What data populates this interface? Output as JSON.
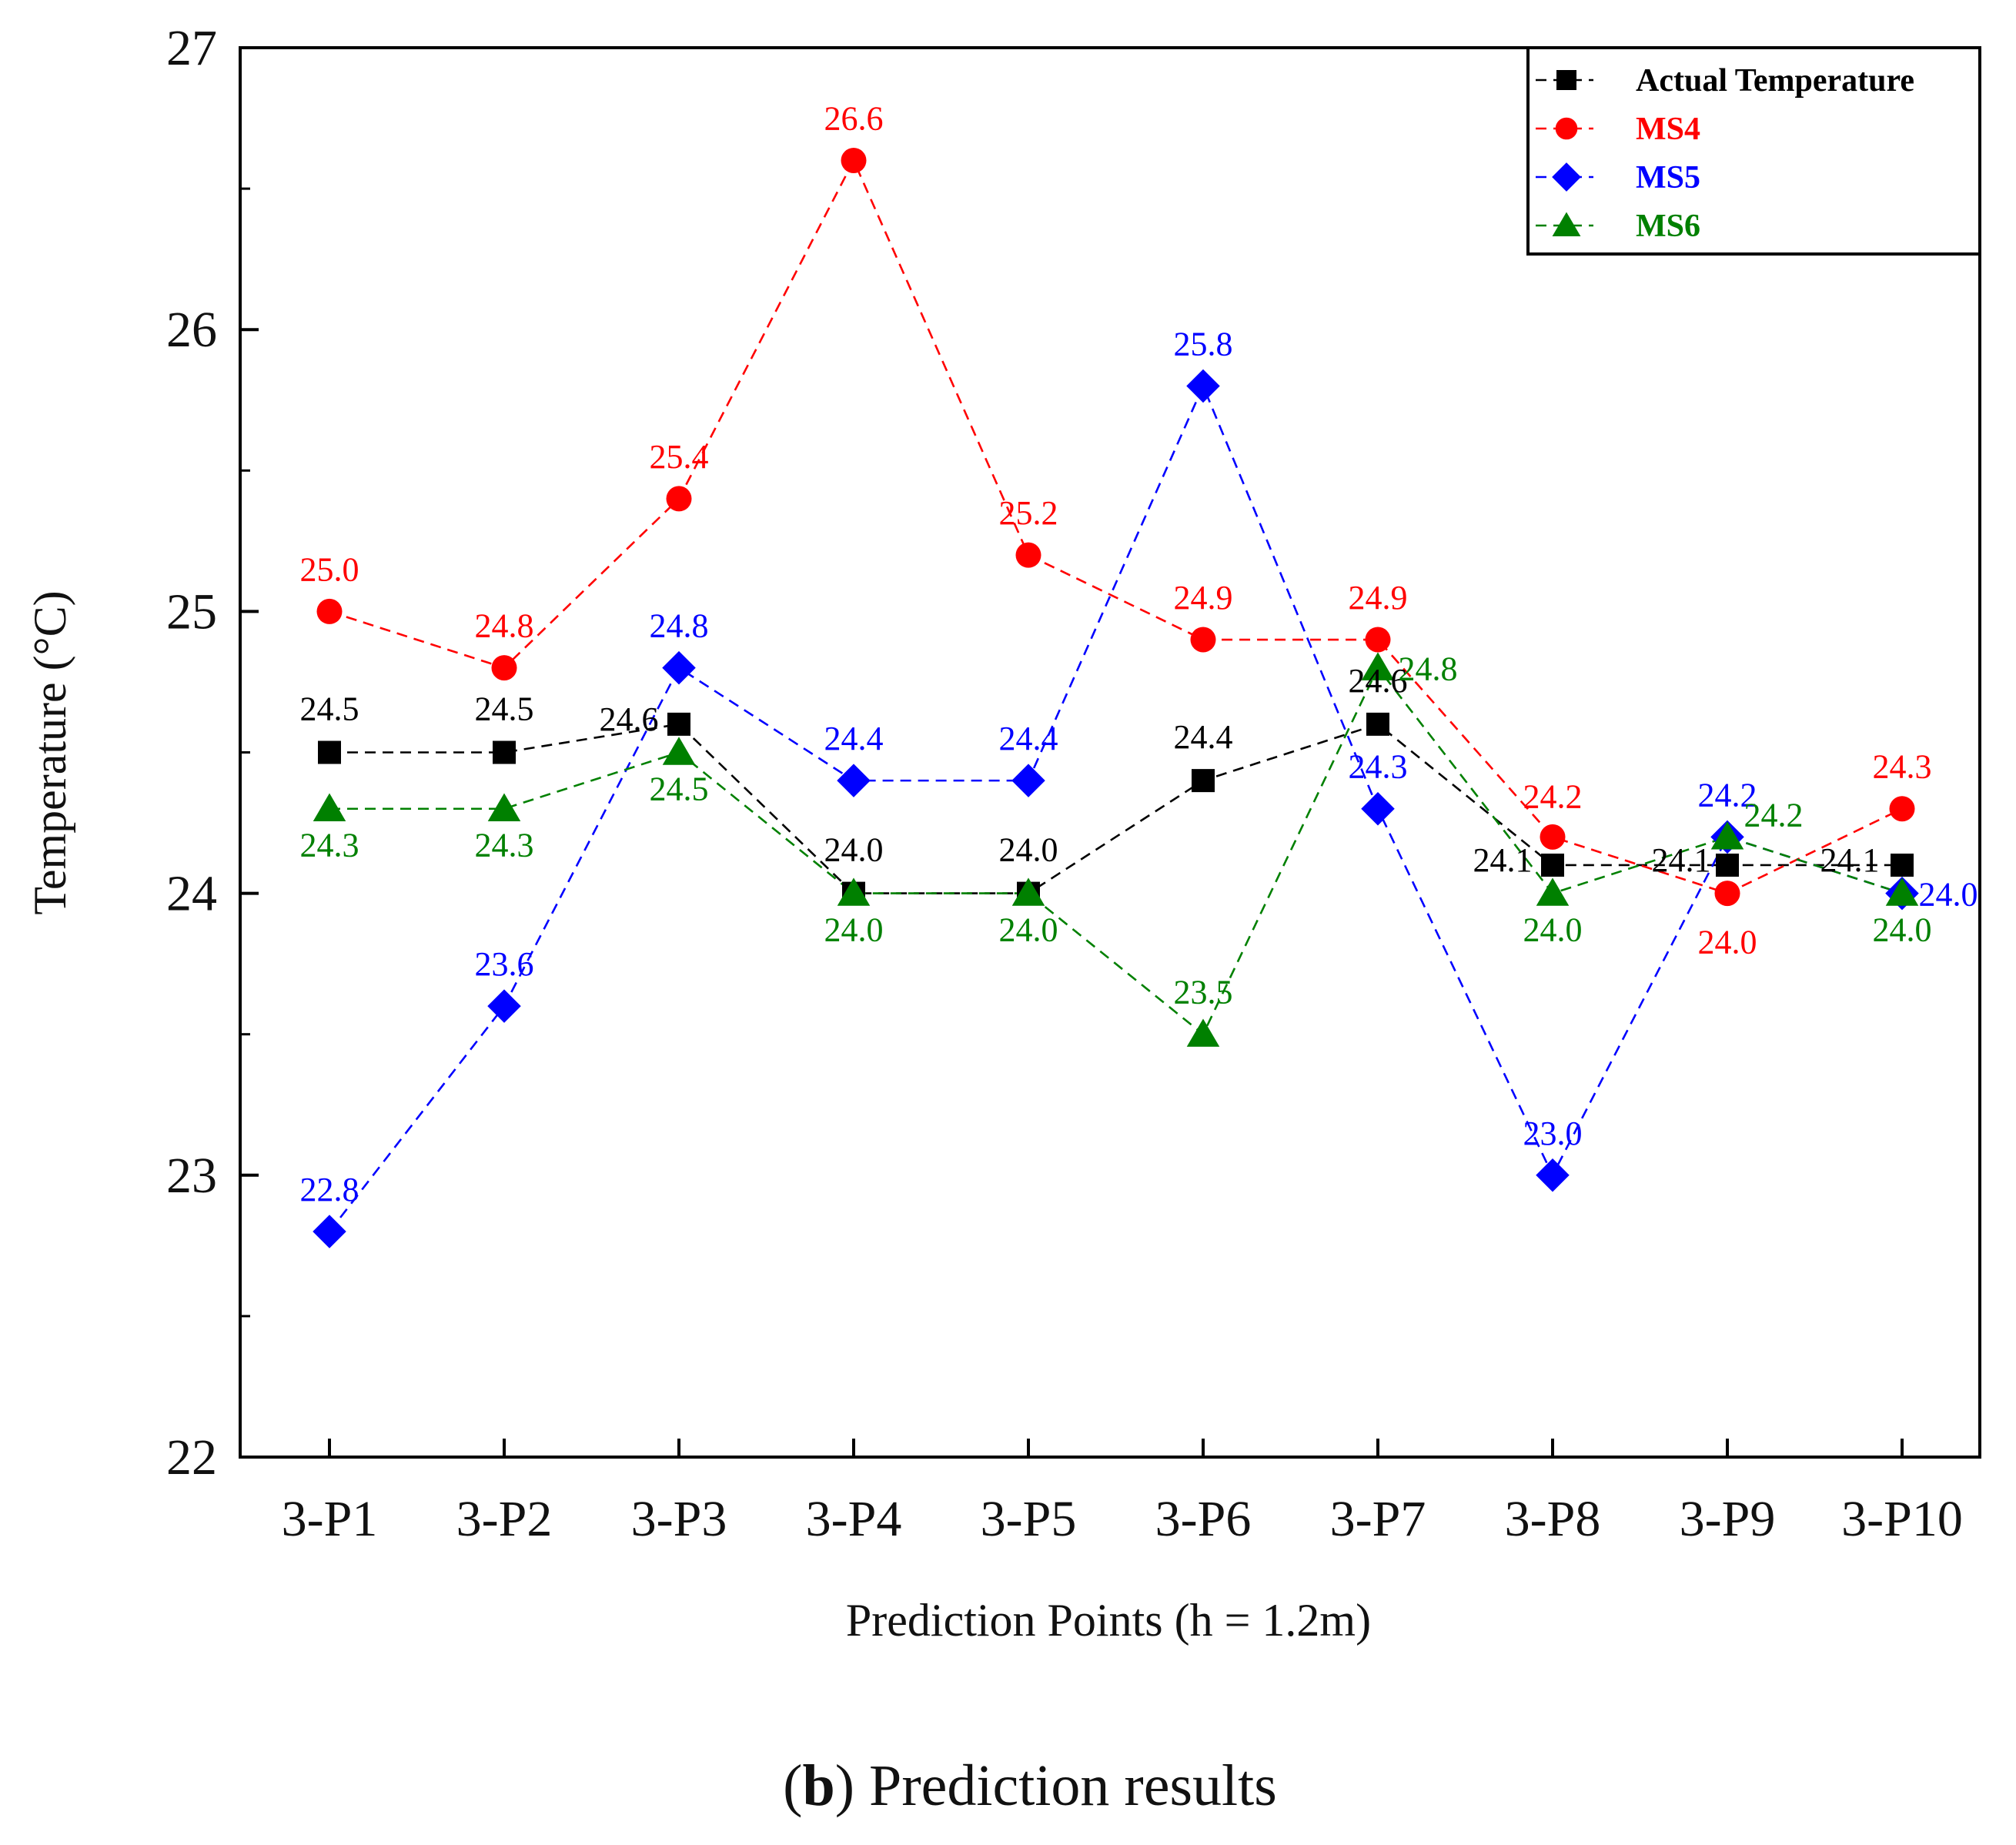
{
  "chart_data": {
    "type": "line",
    "categories": [
      "3-P1",
      "3-P2",
      "3-P3",
      "3-P4",
      "3-P5",
      "3-P6",
      "3-P7",
      "3-P8",
      "3-P9",
      "3-P10"
    ],
    "series": [
      {
        "name": "Actual Temperature",
        "color": "#000000",
        "marker": "square",
        "values": [
          24.5,
          24.5,
          24.6,
          24.0,
          24.0,
          24.4,
          24.6,
          24.1,
          24.1,
          24.1
        ],
        "labels": [
          "24.5",
          "24.5",
          "24.6",
          "24.0",
          "24.0",
          "24.4",
          "24.6",
          "24.1",
          "24.1",
          "24.1"
        ]
      },
      {
        "name": "MS4",
        "color": "#ff0000",
        "marker": "circle",
        "values": [
          25.0,
          24.8,
          25.4,
          26.6,
          25.2,
          24.9,
          24.9,
          24.2,
          24.0,
          24.3
        ],
        "labels": [
          "25.0",
          "24.8",
          "25.4",
          "26.6",
          "25.2",
          "24.9",
          "24.9",
          "24.2",
          "24.0",
          "24.3"
        ]
      },
      {
        "name": "MS5",
        "color": "#0000ff",
        "marker": "diamond",
        "values": [
          22.8,
          23.6,
          24.8,
          24.4,
          24.4,
          25.8,
          24.3,
          23.0,
          24.2,
          24.0
        ],
        "labels": [
          "22.8",
          "23.6",
          "24.8",
          "24.4",
          "24.4",
          "25.8",
          "24.3",
          "23.0",
          "24.2",
          "24.0"
        ]
      },
      {
        "name": "MS6",
        "color": "#008000",
        "marker": "triangle",
        "values": [
          24.3,
          24.3,
          24.5,
          24.0,
          24.0,
          23.5,
          24.8,
          24.0,
          24.2,
          24.0
        ],
        "labels": [
          "24.3",
          "24.3",
          "24.5",
          "24.0",
          "24.0",
          "23.5",
          "24.8",
          "24.0",
          "24.2",
          "24.0"
        ]
      }
    ],
    "xlabel": "Prediction Points (h = 1.2m)",
    "ylabel": "Temperature (°C)",
    "ylim": [
      22,
      27
    ],
    "yticks": [
      22,
      23,
      24,
      25,
      26,
      27
    ],
    "grid": false,
    "legend_position": "top-right",
    "line_style": "dashed"
  },
  "caption": {
    "letter": "b",
    "text": "Prediction results"
  }
}
